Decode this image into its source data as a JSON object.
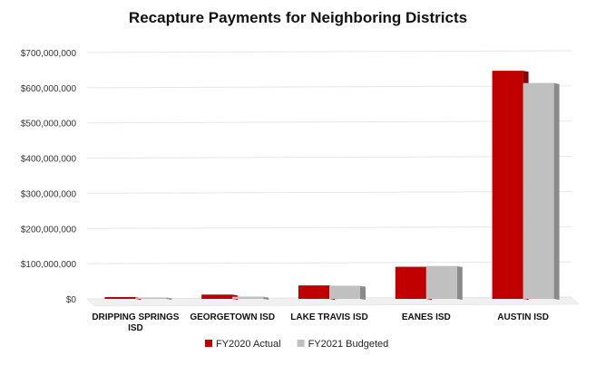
{
  "chart_data": {
    "type": "bar",
    "title": "Recapture Payments for Neighboring Districts",
    "xlabel": "",
    "ylabel": "",
    "ylim": [
      0,
      700000000
    ],
    "yticks": [
      "$0",
      "$100,000,000",
      "$200,000,000",
      "$300,000,000",
      "$400,000,000",
      "$500,000,000",
      "$600,000,000",
      "$700,000,000"
    ],
    "categories": [
      [
        "DRIPPING SPRINGS",
        "ISD"
      ],
      [
        "GEORGETOWN ISD"
      ],
      [
        "LAKE TRAVIS ISD"
      ],
      [
        "EANES ISD"
      ],
      [
        "AUSTIN ISD"
      ]
    ],
    "series": [
      {
        "name": "FY2020 Actual",
        "values": [
          5000000,
          12000000,
          38000000,
          91000000,
          648000000
        ]
      },
      {
        "name": "FY2021 Budgeted",
        "values": [
          4000000,
          6000000,
          37000000,
          93000000,
          613000000
        ]
      }
    ],
    "colors": {
      "FY2020 Actual": "#c00000",
      "FY2021 Budgeted": "#c0c0c0",
      "grid": "#e6e6e6"
    },
    "legend": "bottom"
  }
}
